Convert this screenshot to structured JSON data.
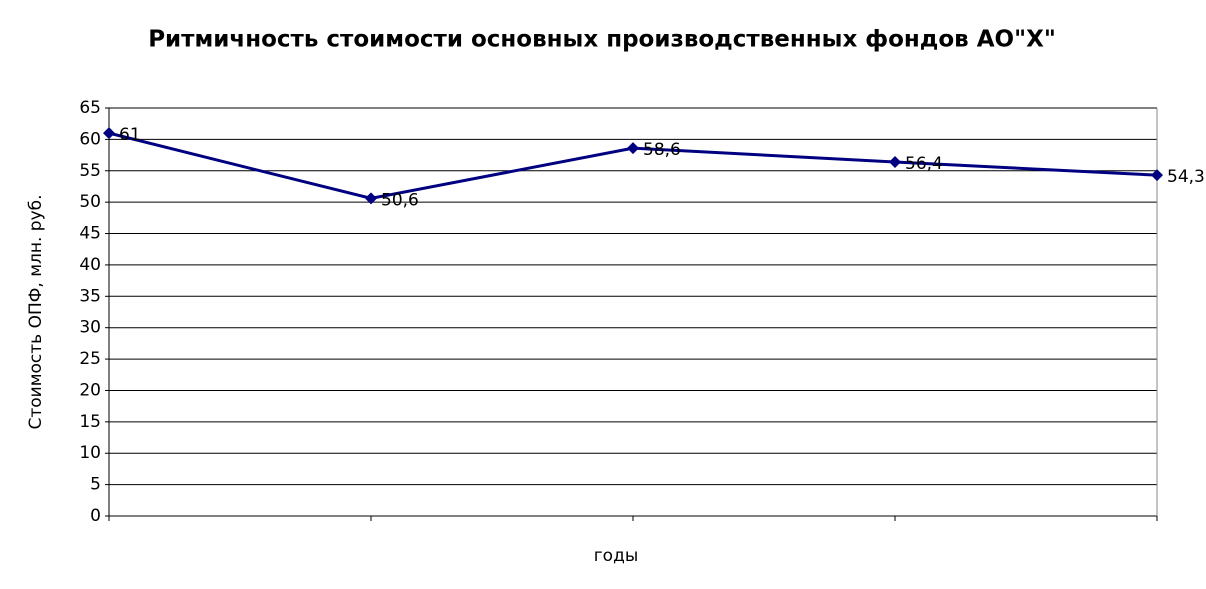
{
  "chart_data": {
    "type": "line",
    "title": "Ритмичность стоимости основных производственных фондов АО\"Х\"",
    "x_label": "годы",
    "y_label": "Стоимость ОПФ, млн. руб.",
    "categories": [
      null,
      null,
      null,
      null,
      null
    ],
    "series": [
      {
        "name": null,
        "color": "#000080",
        "values": [
          61,
          50.6,
          58.6,
          56.4,
          54.3
        ],
        "value_labels": [
          "61",
          "50,6",
          "58,6",
          "56,4",
          "54,3"
        ]
      }
    ],
    "ylim": [
      0,
      65
    ],
    "yticks": [
      0,
      5,
      10,
      15,
      20,
      25,
      30,
      35,
      40,
      45,
      50,
      55,
      60,
      65
    ],
    "grid": true
  }
}
